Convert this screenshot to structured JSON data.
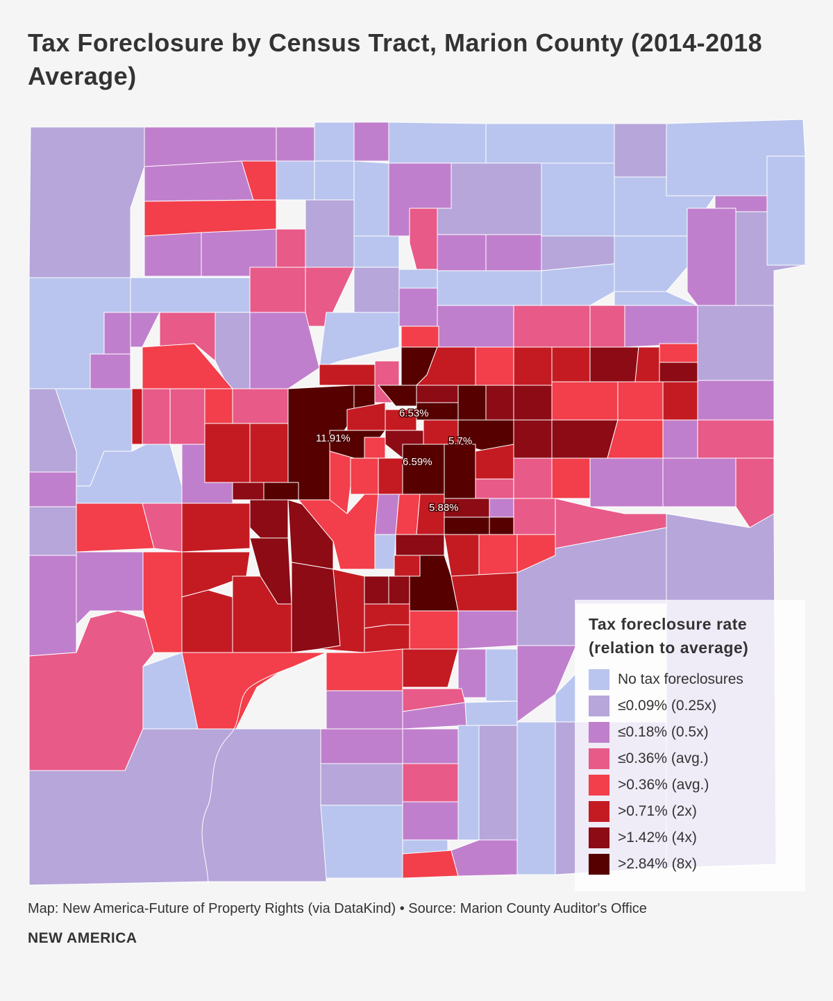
{
  "title": "Tax Foreclosure by Census Tract, Marion County (2014-2018 Average)",
  "map": {
    "labels": [
      "11.91%",
      "6.53%",
      "5.7%",
      "6.59%",
      "5.88%"
    ]
  },
  "legend": {
    "title": "Tax foreclosure rate (relation to average)",
    "items": [
      {
        "label": "No tax foreclosures",
        "color": "#b9c5ee"
      },
      {
        "label": "≤0.09% (0.25x)",
        "color": "#b6a6da"
      },
      {
        "label": "≤0.18% (0.5x)",
        "color": "#c07fcc"
      },
      {
        "label": "≤0.36% (avg.)",
        "color": "#e85a88"
      },
      {
        "label": ">0.36% (avg.)",
        "color": "#f23f4b"
      },
      {
        "label": ">0.71% (2x)",
        "color": "#c41b23"
      },
      {
        "label": ">1.42% (4x)",
        "color": "#8c0b15"
      },
      {
        "label": ">2.84% (8x)",
        "color": "#560000"
      }
    ]
  },
  "caption": "Map: New America-Future of Property Rights (via DataKind) • Source: Marion County Auditor's Office",
  "brand": "NEW AMERICA"
}
